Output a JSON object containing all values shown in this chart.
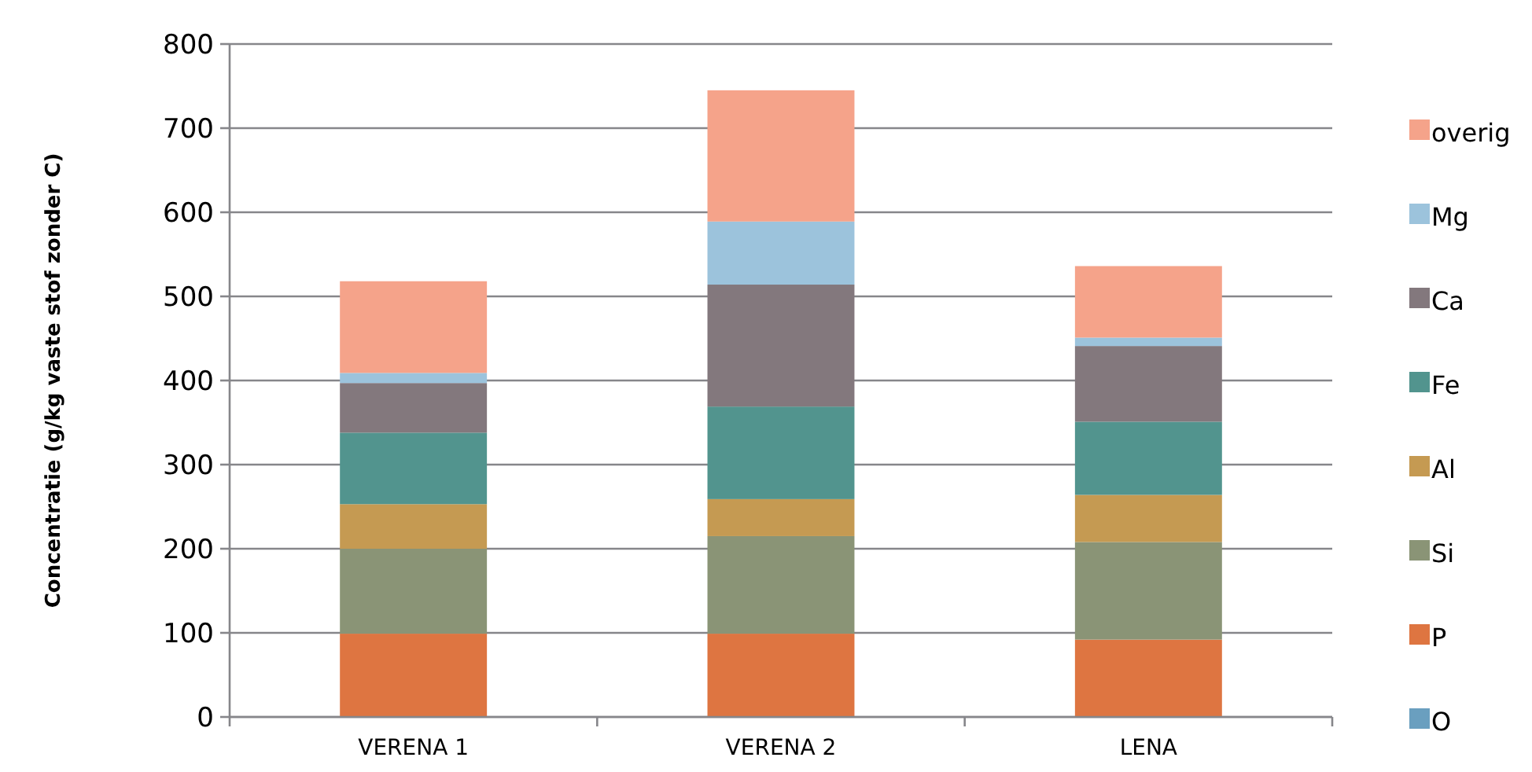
{
  "chart_data": {
    "type": "bar",
    "stacked": true,
    "ylabel": "Concentratie (g/kg vaste stof zonder C)",
    "categories": [
      "VERENA 1",
      "VERENA 2",
      "LENA"
    ],
    "series": [
      {
        "name": "O",
        "color": "#6a9fbf",
        "values": [
          0,
          0,
          0
        ]
      },
      {
        "name": "P",
        "color": "#de7541",
        "values": [
          99,
          99,
          92
        ]
      },
      {
        "name": "Si",
        "color": "#8a9476",
        "values": [
          101,
          116,
          116
        ]
      },
      {
        "name": "Al",
        "color": "#c59a52",
        "values": [
          53,
          44,
          56
        ]
      },
      {
        "name": "Fe",
        "color": "#52948e",
        "values": [
          85,
          110,
          87
        ]
      },
      {
        "name": "Ca",
        "color": "#83787d",
        "values": [
          59,
          145,
          90
        ]
      },
      {
        "name": "Mg",
        "color": "#9cc3dc",
        "values": [
          12,
          75,
          10
        ]
      },
      {
        "name": "overig",
        "color": "#f5a38a",
        "values": [
          109,
          156,
          85
        ]
      }
    ],
    "ylim": [
      0,
      800
    ],
    "yticks": [
      0,
      100,
      200,
      300,
      400,
      500,
      600,
      700,
      800
    ],
    "grid": "y",
    "legend": "right"
  }
}
